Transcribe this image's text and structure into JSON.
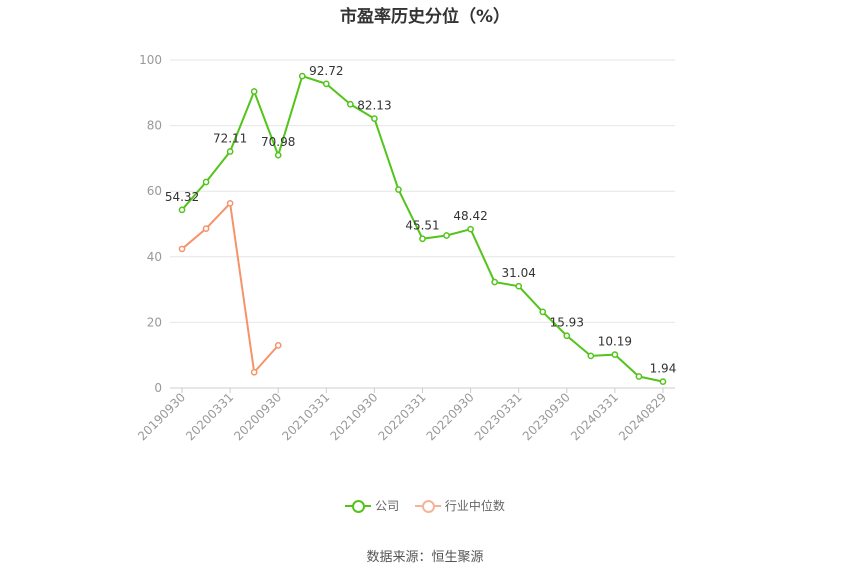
{
  "chart_data": {
    "type": "line",
    "title": "市盈率历史分位（%）",
    "xlabel": "",
    "ylabel": "",
    "ylim": [
      0,
      100
    ],
    "yticks": [
      "0",
      "20",
      "40",
      "60",
      "80",
      "100"
    ],
    "x": [
      "20190930",
      "20191231",
      "20200331",
      "20200630",
      "20200930",
      "20201231",
      "20210331",
      "20210630",
      "20210930",
      "20211231",
      "20220331",
      "20220630",
      "20220930",
      "20221231",
      "20230331",
      "20230630",
      "20230930",
      "20231231",
      "20240331",
      "20240630",
      "20240829"
    ],
    "xtick_labels": [
      "20190930",
      "20200331",
      "20200930",
      "20210331",
      "20210930",
      "20220331",
      "20220930",
      "20230331",
      "20230930",
      "20240331",
      "20240829"
    ],
    "series": [
      {
        "name": "公司",
        "color": "#52c41a",
        "values": [
          54.32,
          62.8,
          72.11,
          90.4,
          70.98,
          95.1,
          92.72,
          86.5,
          82.13,
          60.5,
          45.51,
          46.5,
          48.42,
          32.3,
          31.04,
          23.2,
          15.93,
          9.8,
          10.19,
          3.5,
          1.94
        ]
      },
      {
        "name": "行业中位数",
        "color": "#f5936a",
        "values": [
          42.4,
          48.6,
          56.3,
          4.8,
          13.0,
          null,
          null,
          null,
          null,
          null,
          null,
          null,
          null,
          null,
          null,
          null,
          null,
          null,
          null,
          null,
          null
        ]
      }
    ],
    "data_labels": [
      {
        "series": 0,
        "index": 0,
        "text": "54.32"
      },
      {
        "series": 0,
        "index": 2,
        "text": "72.11"
      },
      {
        "series": 0,
        "index": 4,
        "text": "70.98"
      },
      {
        "series": 0,
        "index": 6,
        "text": "92.72"
      },
      {
        "series": 0,
        "index": 8,
        "text": "82.13"
      },
      {
        "series": 0,
        "index": 10,
        "text": "45.51"
      },
      {
        "series": 0,
        "index": 12,
        "text": "48.42"
      },
      {
        "series": 0,
        "index": 14,
        "text": "31.04"
      },
      {
        "series": 0,
        "index": 16,
        "text": "15.93"
      },
      {
        "series": 0,
        "index": 18,
        "text": "10.19"
      },
      {
        "series": 0,
        "index": 20,
        "text": "1.94"
      }
    ],
    "grid": true,
    "legend_position": "bottom-center"
  },
  "legend": {
    "company_label": "公司",
    "industry_label": "行业中位数"
  },
  "source": "数据来源：恒生聚源"
}
